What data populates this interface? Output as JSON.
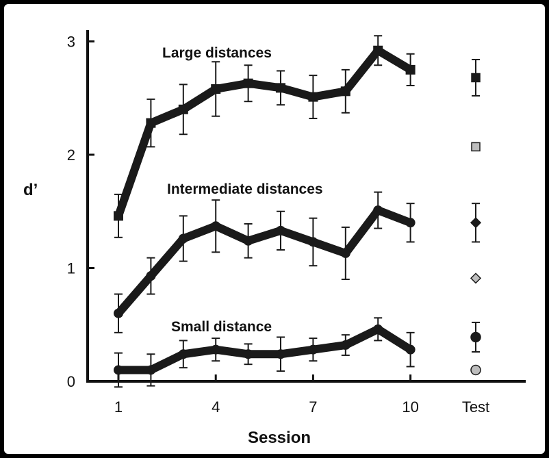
{
  "chart_data": {
    "type": "line",
    "xlabel": "Session",
    "ylabel": "d’",
    "x_ticks": [
      "1",
      "4",
      "7",
      "10",
      "Test"
    ],
    "y_ticks": [
      "0",
      "1",
      "2",
      "3"
    ],
    "ylim": [
      0,
      3
    ],
    "xlim": [
      1,
      10
    ],
    "grid": false,
    "series": [
      {
        "name": "Large distances",
        "sessions": [
          1,
          2,
          3,
          4,
          5,
          6,
          7,
          8,
          9,
          10
        ],
        "values": [
          1.46,
          2.28,
          2.4,
          2.58,
          2.63,
          2.59,
          2.51,
          2.56,
          2.92,
          2.75
        ],
        "errors": [
          0.19,
          0.21,
          0.22,
          0.24,
          0.16,
          0.15,
          0.19,
          0.19,
          0.13,
          0.14
        ],
        "test": [
          {
            "value": 2.68,
            "error": 0.16,
            "marker": "square",
            "fill": "dark"
          },
          {
            "value": 2.07,
            "error": 0,
            "marker": "square",
            "fill": "light"
          }
        ]
      },
      {
        "name": "Intermediate distances",
        "sessions": [
          1,
          2,
          3,
          4,
          5,
          6,
          7,
          8,
          9,
          10
        ],
        "values": [
          0.6,
          0.93,
          1.26,
          1.37,
          1.24,
          1.33,
          1.23,
          1.13,
          1.51,
          1.4
        ],
        "errors": [
          0.17,
          0.16,
          0.2,
          0.23,
          0.15,
          0.17,
          0.21,
          0.23,
          0.16,
          0.17
        ],
        "test": [
          {
            "value": 1.4,
            "error": 0.17,
            "marker": "diamond",
            "fill": "dark"
          },
          {
            "value": 0.91,
            "error": 0,
            "marker": "diamond",
            "fill": "light"
          }
        ]
      },
      {
        "name": "Small distance",
        "sessions": [
          1,
          2,
          3,
          4,
          5,
          6,
          7,
          8,
          9,
          10
        ],
        "values": [
          0.1,
          0.1,
          0.24,
          0.28,
          0.24,
          0.24,
          0.28,
          0.32,
          0.46,
          0.28
        ],
        "errors": [
          0.15,
          0.14,
          0.12,
          0.1,
          0.09,
          0.15,
          0.1,
          0.09,
          0.1,
          0.15
        ],
        "test": [
          {
            "value": 0.39,
            "error": 0.13,
            "marker": "circle",
            "fill": "dark"
          },
          {
            "value": 0.1,
            "error": 0,
            "marker": "circle",
            "fill": "light"
          }
        ]
      }
    ],
    "colors": {
      "line": "#1a1a1a",
      "test_light": "#bdbdbd"
    }
  }
}
